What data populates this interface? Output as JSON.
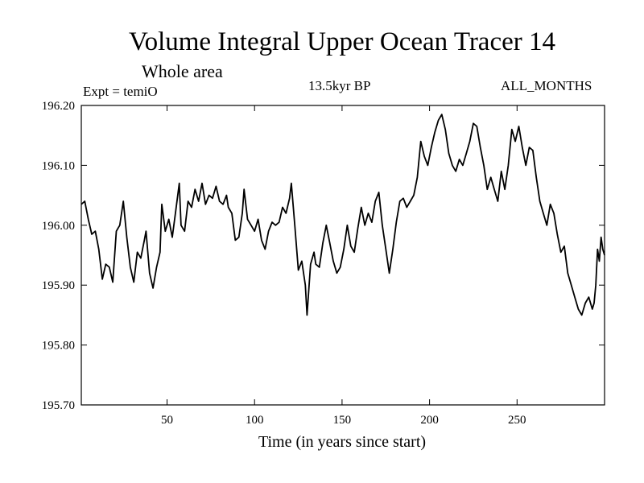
{
  "header": {
    "title": "Volume Integral Upper Ocean Tracer 14",
    "subtitle": "Whole area",
    "expt": "Expt = temiO",
    "period": "13.5kyr BP",
    "months": "ALL_MONTHS"
  },
  "chart_data": {
    "type": "line",
    "title": "Volume Integral Upper Ocean Tracer 14",
    "xlabel": "Time (in years since start)",
    "ylabel": "",
    "xlim": [
      1,
      300
    ],
    "ylim": [
      195.7,
      196.2
    ],
    "x_ticks": [
      50,
      100,
      150,
      200,
      250
    ],
    "y_ticks": [
      "195.70",
      "195.80",
      "195.90",
      "196.00",
      "196.10",
      "196.20"
    ],
    "grid": false,
    "series": [
      {
        "color": "#000000",
        "points": [
          [
            1,
            196.035
          ],
          [
            3,
            196.04
          ],
          [
            5,
            196.01
          ],
          [
            7,
            195.985
          ],
          [
            9,
            195.99
          ],
          [
            11,
            195.96
          ],
          [
            13,
            195.91
          ],
          [
            15,
            195.935
          ],
          [
            17,
            195.93
          ],
          [
            19,
            195.905
          ],
          [
            21,
            195.99
          ],
          [
            23,
            196.0
          ],
          [
            25,
            196.04
          ],
          [
            27,
            195.98
          ],
          [
            29,
            195.93
          ],
          [
            31,
            195.905
          ],
          [
            33,
            195.955
          ],
          [
            35,
            195.945
          ],
          [
            37,
            195.975
          ],
          [
            38,
            195.99
          ],
          [
            40,
            195.92
          ],
          [
            42,
            195.895
          ],
          [
            44,
            195.93
          ],
          [
            46,
            195.955
          ],
          [
            47,
            196.035
          ],
          [
            49,
            195.99
          ],
          [
            51,
            196.01
          ],
          [
            53,
            195.98
          ],
          [
            55,
            196.025
          ],
          [
            57,
            196.07
          ],
          [
            58,
            196.0
          ],
          [
            60,
            195.99
          ],
          [
            62,
            196.04
          ],
          [
            64,
            196.03
          ],
          [
            66,
            196.06
          ],
          [
            68,
            196.04
          ],
          [
            70,
            196.07
          ],
          [
            72,
            196.035
          ],
          [
            74,
            196.05
          ],
          [
            76,
            196.045
          ],
          [
            78,
            196.065
          ],
          [
            80,
            196.04
          ],
          [
            82,
            196.035
          ],
          [
            84,
            196.05
          ],
          [
            85,
            196.03
          ],
          [
            87,
            196.02
          ],
          [
            89,
            195.975
          ],
          [
            91,
            195.98
          ],
          [
            93,
            196.02
          ],
          [
            94,
            196.06
          ],
          [
            96,
            196.01
          ],
          [
            98,
            196.0
          ],
          [
            100,
            195.99
          ],
          [
            102,
            196.01
          ],
          [
            104,
            195.975
          ],
          [
            106,
            195.96
          ],
          [
            108,
            195.99
          ],
          [
            110,
            196.005
          ],
          [
            112,
            196.0
          ],
          [
            114,
            196.005
          ],
          [
            116,
            196.03
          ],
          [
            118,
            196.02
          ],
          [
            120,
            196.045
          ],
          [
            121,
            196.07
          ],
          [
            123,
            196.0
          ],
          [
            125,
            195.925
          ],
          [
            127,
            195.94
          ],
          [
            129,
            195.9
          ],
          [
            130,
            195.85
          ],
          [
            132,
            195.935
          ],
          [
            134,
            195.955
          ],
          [
            135,
            195.935
          ],
          [
            137,
            195.93
          ],
          [
            139,
            195.97
          ],
          [
            141,
            196.0
          ],
          [
            143,
            195.97
          ],
          [
            145,
            195.94
          ],
          [
            147,
            195.92
          ],
          [
            149,
            195.93
          ],
          [
            151,
            195.96
          ],
          [
            153,
            196.0
          ],
          [
            155,
            195.965
          ],
          [
            157,
            195.955
          ],
          [
            159,
            195.995
          ],
          [
            161,
            196.03
          ],
          [
            163,
            196.0
          ],
          [
            165,
            196.02
          ],
          [
            167,
            196.005
          ],
          [
            169,
            196.04
          ],
          [
            171,
            196.055
          ],
          [
            173,
            196.0
          ],
          [
            175,
            195.96
          ],
          [
            177,
            195.92
          ],
          [
            179,
            195.96
          ],
          [
            181,
            196.005
          ],
          [
            183,
            196.04
          ],
          [
            185,
            196.045
          ],
          [
            187,
            196.03
          ],
          [
            189,
            196.04
          ],
          [
            191,
            196.05
          ],
          [
            193,
            196.08
          ],
          [
            195,
            196.14
          ],
          [
            197,
            196.115
          ],
          [
            199,
            196.1
          ],
          [
            201,
            196.13
          ],
          [
            203,
            196.155
          ],
          [
            205,
            196.175
          ],
          [
            207,
            196.185
          ],
          [
            209,
            196.16
          ],
          [
            211,
            196.12
          ],
          [
            213,
            196.1
          ],
          [
            215,
            196.09
          ],
          [
            217,
            196.11
          ],
          [
            219,
            196.1
          ],
          [
            221,
            196.12
          ],
          [
            223,
            196.14
          ],
          [
            225,
            196.17
          ],
          [
            227,
            196.165
          ],
          [
            229,
            196.13
          ],
          [
            231,
            196.1
          ],
          [
            233,
            196.06
          ],
          [
            235,
            196.08
          ],
          [
            237,
            196.06
          ],
          [
            239,
            196.04
          ],
          [
            241,
            196.09
          ],
          [
            243,
            196.06
          ],
          [
            245,
            196.1
          ],
          [
            247,
            196.16
          ],
          [
            249,
            196.14
          ],
          [
            251,
            196.165
          ],
          [
            253,
            196.13
          ],
          [
            255,
            196.1
          ],
          [
            257,
            196.13
          ],
          [
            259,
            196.125
          ],
          [
            261,
            196.08
          ],
          [
            263,
            196.04
          ],
          [
            265,
            196.02
          ],
          [
            267,
            196.0
          ],
          [
            269,
            196.035
          ],
          [
            271,
            196.02
          ],
          [
            273,
            195.985
          ],
          [
            275,
            195.955
          ],
          [
            277,
            195.965
          ],
          [
            279,
            195.92
          ],
          [
            281,
            195.9
          ],
          [
            283,
            195.88
          ],
          [
            285,
            195.86
          ],
          [
            287,
            195.85
          ],
          [
            289,
            195.87
          ],
          [
            291,
            195.88
          ],
          [
            293,
            195.86
          ],
          [
            294,
            195.87
          ],
          [
            295,
            195.9
          ],
          [
            296,
            195.96
          ],
          [
            297,
            195.94
          ],
          [
            298,
            195.98
          ],
          [
            299,
            195.96
          ],
          [
            300,
            195.95
          ]
        ]
      }
    ]
  }
}
